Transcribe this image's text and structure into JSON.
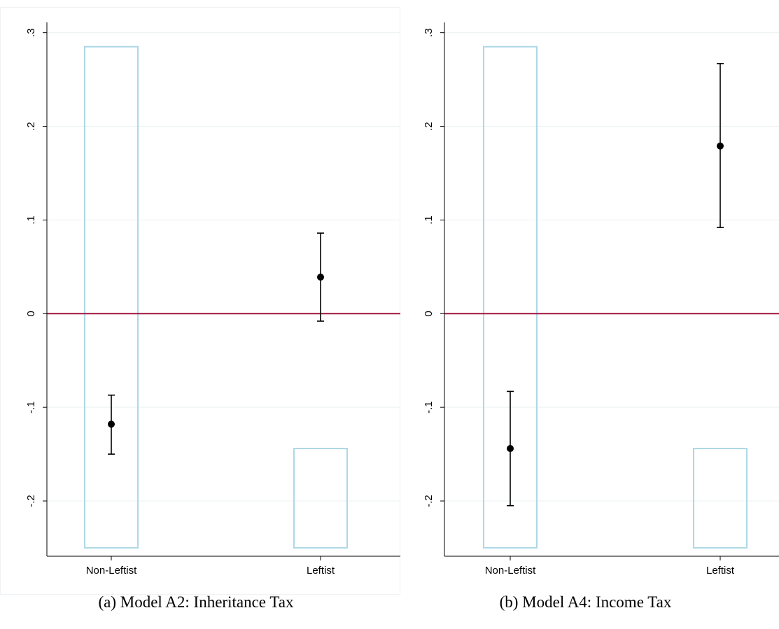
{
  "chart_data": [
    {
      "type": "scatter",
      "caption": "(a) Model A2: Inheritance Tax",
      "categories": [
        "Non-Leftist",
        "Leftist"
      ],
      "yticks": [
        -0.2,
        -0.1,
        0,
        0.1,
        0.2,
        0.3
      ],
      "ytick_labels": [
        "-.2",
        "-.1",
        "0",
        ".1",
        ".2",
        ".3"
      ],
      "ylim": [
        -0.259,
        0.305
      ],
      "grid": true,
      "reference_line": {
        "y": 0,
        "color": "#a0153e"
      },
      "histogram_bars": [
        {
          "category": "Non-Leftist",
          "bottom": -0.25,
          "top": 0.285
        },
        {
          "category": "Leftist",
          "bottom": -0.25,
          "top": -0.144
        }
      ],
      "points": [
        {
          "category": "Non-Leftist",
          "estimate": -0.118,
          "ci_low": -0.15,
          "ci_high": -0.087
        },
        {
          "category": "Leftist",
          "estimate": 0.039,
          "ci_low": -0.008,
          "ci_high": 0.086
        }
      ],
      "colors": {
        "bar_outline": "#add8e6",
        "marker": "#000000",
        "grid": "#eaf0f3"
      }
    },
    {
      "type": "scatter",
      "caption": "(b) Model A4: Income Tax",
      "categories": [
        "Non-Leftist",
        "Leftist"
      ],
      "yticks": [
        -0.2,
        -0.1,
        0,
        0.1,
        0.2,
        0.3
      ],
      "ytick_labels": [
        "-.2",
        "-.1",
        "0",
        ".1",
        ".2",
        ".3"
      ],
      "ylim": [
        -0.259,
        0.305
      ],
      "grid": true,
      "reference_line": {
        "y": 0,
        "color": "#a0153e"
      },
      "histogram_bars": [
        {
          "category": "Non-Leftist",
          "bottom": -0.25,
          "top": 0.285
        },
        {
          "category": "Leftist",
          "bottom": -0.25,
          "top": -0.144
        }
      ],
      "points": [
        {
          "category": "Non-Leftist",
          "estimate": -0.144,
          "ci_low": -0.205,
          "ci_high": -0.083
        },
        {
          "category": "Leftist",
          "estimate": 0.179,
          "ci_low": 0.092,
          "ci_high": 0.267
        }
      ],
      "colors": {
        "bar_outline": "#add8e6",
        "marker": "#000000",
        "grid": "#eaf0f3"
      }
    }
  ]
}
